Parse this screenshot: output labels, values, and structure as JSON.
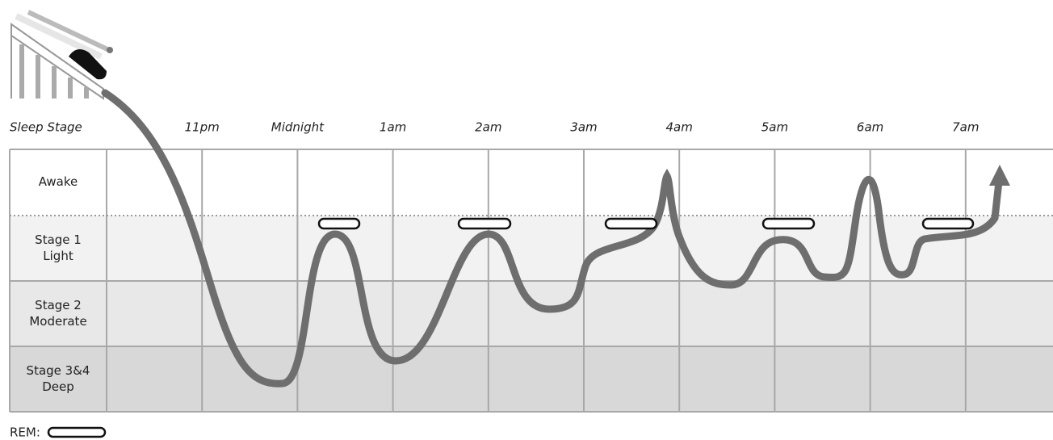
{
  "header": {
    "title": "Sleep Stage",
    "times": [
      "11pm",
      "Midnight",
      "1am",
      "2am",
      "3am",
      "4am",
      "5am",
      "6am",
      "7am"
    ]
  },
  "stages": [
    [
      "Awake"
    ],
    [
      "Stage 1",
      "Light"
    ],
    [
      "Stage 2",
      "Moderate"
    ],
    [
      "Stage 3&4",
      "Deep"
    ]
  ],
  "legend": {
    "label": "REM:"
  }
}
